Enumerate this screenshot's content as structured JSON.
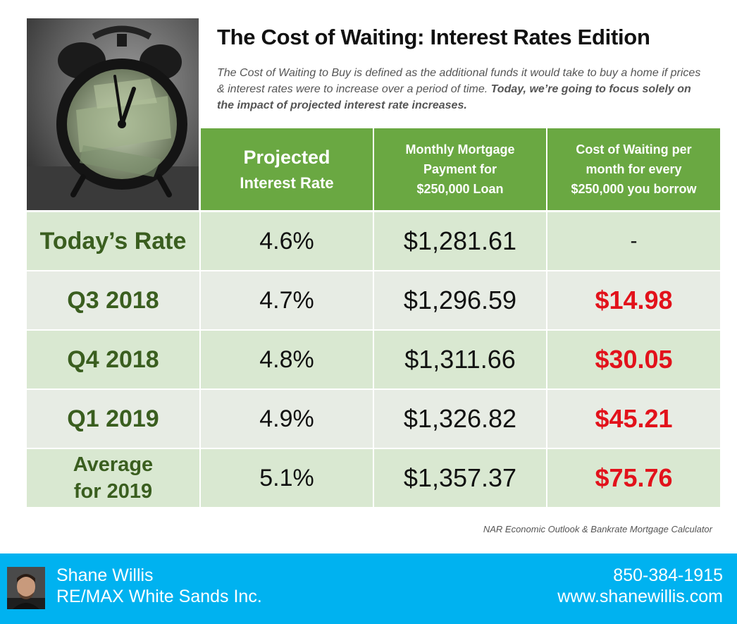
{
  "header": {
    "title": "The Cost of Waiting: Interest Rates Edition",
    "subtitle_plain": "The Cost of Waiting to Buy is defined as the additional funds it would take to buy a home if prices & interest rates were to increase over a period of time. ",
    "subtitle_bold": "Today, we’re going to focus solely on the impact of projected interest rate increases."
  },
  "table": {
    "headers": {
      "rate_line1": "Projected",
      "rate_line2": "Interest Rate",
      "payment": "Monthly Mortgage Payment for $250,000 Loan",
      "cost": "Cost of Waiting per month for every $250,000 you borrow"
    },
    "rows": [
      {
        "label": "Today’s Rate",
        "rate": "4.6%",
        "payment": "$1,281.61",
        "cost": "-"
      },
      {
        "label": "Q3 2018",
        "rate": "4.7%",
        "payment": "$1,296.59",
        "cost": "$14.98"
      },
      {
        "label": "Q4 2018",
        "rate": "4.8%",
        "payment": "$1,311.66",
        "cost": "$30.05"
      },
      {
        "label": "Q1 2019",
        "rate": "4.9%",
        "payment": "$1,326.82",
        "cost": "$45.21"
      },
      {
        "label": "Average for 2019",
        "rate": "5.1%",
        "payment": "$1,357.37",
        "cost": "$75.76"
      }
    ]
  },
  "source": "NAR Economic Outlook & Bankrate Mortgage Calculator",
  "footer": {
    "name": "Shane Willis",
    "company": "RE/MAX White Sands Inc.",
    "phone": "850-384-1915",
    "website": "www.shanewillis.com"
  },
  "colors": {
    "header_green": "#6aa842",
    "label_green": "#3a5e1f",
    "cost_red": "#e2121b",
    "footer_blue": "#00b2f0"
  },
  "icons": {
    "photo": "alarm-clock-money-photo",
    "avatar": "agent-avatar-photo"
  }
}
